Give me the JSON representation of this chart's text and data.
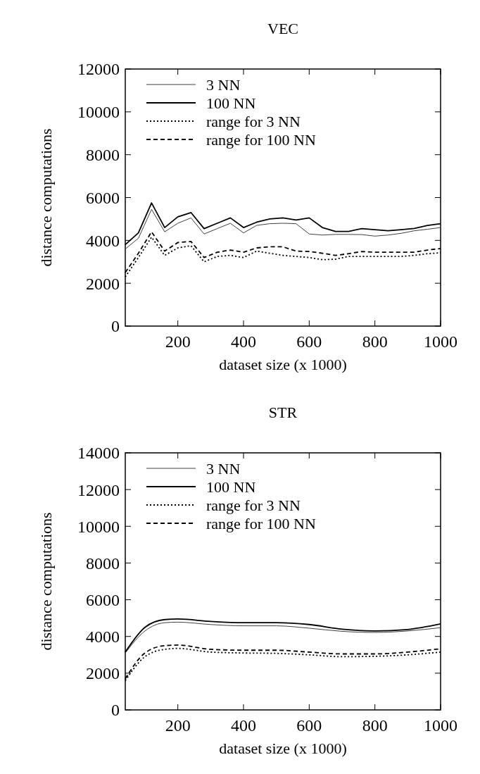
{
  "chart_data": [
    {
      "type": "line",
      "title": "VEC",
      "xlabel": "dataset size (x 1000)",
      "ylabel": "distance computations",
      "xlim": [
        40,
        1000
      ],
      "xticks": [
        200,
        400,
        600,
        800,
        1000
      ],
      "ylim": [
        0,
        12000
      ],
      "yticks": [
        0,
        2000,
        4000,
        6000,
        8000,
        10000,
        12000
      ],
      "legend": "top left",
      "grid": false,
      "x": [
        40,
        80,
        120,
        160,
        200,
        240,
        280,
        320,
        360,
        400,
        440,
        480,
        520,
        560,
        600,
        640,
        680,
        720,
        760,
        800,
        840,
        880,
        920,
        960,
        1000
      ],
      "series": [
        {
          "name": "3 NN",
          "color": "#404040",
          "line_style": "solid",
          "values": [
            3600,
            4100,
            5450,
            4400,
            4800,
            5050,
            4300,
            4550,
            4800,
            4350,
            4700,
            4780,
            4800,
            4780,
            4300,
            4250,
            4280,
            4280,
            4270,
            4200,
            4250,
            4330,
            4450,
            4520,
            4600
          ]
        },
        {
          "name": "100 NN",
          "color": "#000000",
          "line_style": "solid",
          "values": [
            3800,
            4350,
            5750,
            4600,
            5100,
            5300,
            4550,
            4800,
            5050,
            4600,
            4850,
            5000,
            5050,
            4950,
            5050,
            4600,
            4420,
            4420,
            4550,
            4500,
            4450,
            4500,
            4560,
            4700,
            4780
          ]
        },
        {
          "name": "range for 3 NN",
          "color": "#000000",
          "line_style": "dotted",
          "values": [
            2300,
            3200,
            4150,
            3300,
            3650,
            3750,
            3000,
            3250,
            3300,
            3200,
            3500,
            3400,
            3300,
            3250,
            3200,
            3100,
            3120,
            3250,
            3250,
            3250,
            3250,
            3250,
            3300,
            3380,
            3420
          ]
        },
        {
          "name": "range for 100 NN",
          "color": "#000000",
          "line_style": "dashed",
          "values": [
            2500,
            3400,
            4400,
            3500,
            3900,
            3950,
            3200,
            3450,
            3550,
            3450,
            3650,
            3700,
            3700,
            3500,
            3480,
            3400,
            3300,
            3380,
            3480,
            3450,
            3450,
            3450,
            3450,
            3550,
            3620
          ]
        }
      ]
    },
    {
      "type": "line",
      "title": "STR",
      "xlabel": "dataset size (x 1000)",
      "ylabel": "distance computations",
      "xlim": [
        40,
        1000
      ],
      "xticks": [
        200,
        400,
        600,
        800,
        1000
      ],
      "ylim": [
        0,
        14000
      ],
      "yticks": [
        0,
        2000,
        4000,
        6000,
        8000,
        10000,
        12000,
        14000
      ],
      "legend": "top left",
      "grid": false,
      "x": [
        40,
        100,
        160,
        200,
        300,
        400,
        500,
        600,
        700,
        800,
        900,
        1000
      ],
      "series": [
        {
          "name": "3 NN",
          "color": "#404040",
          "line_style": "solid",
          "values": [
            3100,
            4300,
            4750,
            4780,
            4650,
            4580,
            4580,
            4450,
            4280,
            4220,
            4300,
            4480
          ]
        },
        {
          "name": "100 NN",
          "color": "#000000",
          "line_style": "solid",
          "values": [
            3150,
            4500,
            4920,
            4950,
            4820,
            4750,
            4750,
            4650,
            4400,
            4300,
            4380,
            4680
          ]
        },
        {
          "name": "range for 3 NN",
          "color": "#000000",
          "line_style": "dotted",
          "values": [
            1600,
            2900,
            3300,
            3350,
            3150,
            3100,
            3080,
            3000,
            2900,
            2920,
            3000,
            3150
          ]
        },
        {
          "name": "range for 100 NN",
          "color": "#000000",
          "line_style": "dashed",
          "values": [
            1700,
            3100,
            3500,
            3530,
            3300,
            3250,
            3250,
            3150,
            3050,
            3050,
            3150,
            3330
          ]
        }
      ]
    }
  ]
}
